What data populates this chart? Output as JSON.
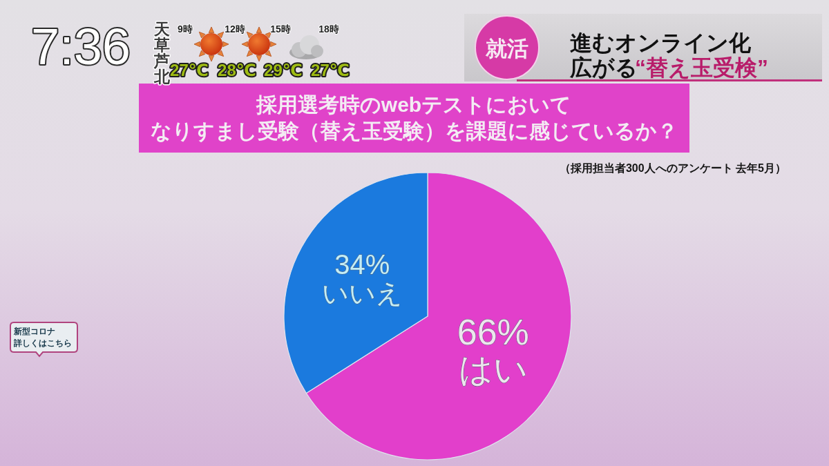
{
  "chart_data": {
    "type": "pie",
    "title": "採用選考時のwebテストにおいてなりすまし受験（替え玉受験）を課題に感じているか？",
    "subtitle": "（採用担当者300人へのアンケート 去年5月）",
    "categories": [
      "はい",
      "いいえ"
    ],
    "values": [
      66,
      34
    ],
    "colors": [
      "#e23fcb",
      "#1b7ade"
    ],
    "value_labels": [
      "66%",
      "34%"
    ],
    "annotations": [
      "7:36",
      "天草芦北",
      "9時",
      "12時",
      "15時",
      "18時",
      "27℃",
      "28℃",
      "29℃",
      "27℃",
      "就活",
      "進むオンライン化",
      "広がる",
      "“替え玉受検”",
      "新型コロナ詳しくはこちら"
    ]
  }
}
